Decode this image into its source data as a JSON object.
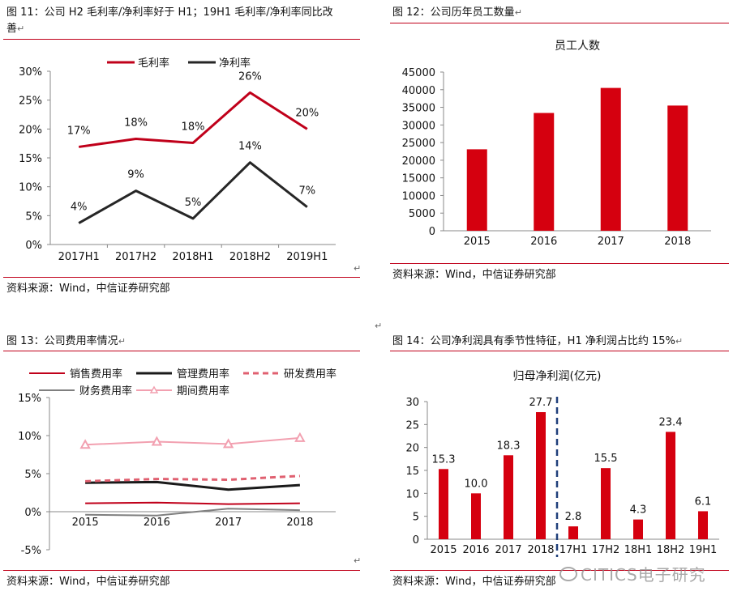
{
  "panel11": {
    "title_line1": "图 11：公司 H2 毛利率/净利率好于 H1；19H1 毛利率/净利率同比改",
    "title_line2": "善",
    "source": "资料来源：Wind，中信证券研究部",
    "chart_data": {
      "type": "line",
      "categories": [
        "2017H1",
        "2017H2",
        "2018H1",
        "2018H2",
        "2019H1"
      ],
      "ylim": [
        0,
        30
      ],
      "yticks": [
        "0%",
        "5%",
        "10%",
        "15%",
        "20%",
        "25%",
        "30%"
      ],
      "series": [
        {
          "name": "毛利率",
          "color": "#c0001a",
          "values": [
            16.9,
            18.3,
            17.6,
            26.3,
            20.0
          ],
          "labels": [
            "17%",
            "18%",
            "18%",
            "26%",
            "20%"
          ]
        },
        {
          "name": "净利率",
          "color": "#262626",
          "values": [
            3.7,
            9.3,
            4.5,
            14.2,
            6.5
          ],
          "labels": [
            "4%",
            "9%",
            "5%",
            "14%",
            "7%"
          ]
        }
      ]
    }
  },
  "panel12": {
    "title": "图 12：公司历年员工数量",
    "source": "资料来源：Wind，中信证券研究部",
    "chart_data": {
      "type": "bar",
      "title": "员工人数",
      "categories": [
        "2015",
        "2016",
        "2017",
        "2018"
      ],
      "values": [
        23100,
        33400,
        40500,
        35500
      ],
      "ylim": [
        0,
        45000
      ],
      "yticks": [
        "0",
        "5000",
        "10000",
        "15000",
        "20000",
        "25000",
        "30000",
        "35000",
        "40000",
        "45000"
      ],
      "color": "#d5000f"
    }
  },
  "panel13": {
    "title": "图 13：公司费用率情况",
    "source": "资料来源：Wind，中信证券研究部",
    "chart_data": {
      "type": "line",
      "categories": [
        "2015",
        "2016",
        "2017",
        "2018"
      ],
      "ylim": [
        -5,
        15
      ],
      "yticks": [
        "-5%",
        "0%",
        "5%",
        "10%",
        "15%"
      ],
      "series": [
        {
          "name": "销售费用率",
          "color": "#c0001a",
          "style": "solid",
          "values": [
            1.1,
            1.2,
            1.0,
            1.1
          ]
        },
        {
          "name": "管理费用率",
          "color": "#1a1a1a",
          "style": "thick",
          "values": [
            3.8,
            3.9,
            2.9,
            3.5
          ]
        },
        {
          "name": "研发费用率",
          "color": "#e06070",
          "style": "dashed",
          "values": [
            4.0,
            4.3,
            4.2,
            4.7
          ]
        },
        {
          "name": "财务费用率",
          "color": "#7f7f7f",
          "style": "solid",
          "values": [
            -0.4,
            -0.5,
            0.4,
            0.2
          ]
        },
        {
          "name": "期间费用率",
          "color": "#f2a0b0",
          "style": "triangle",
          "values": [
            8.8,
            9.2,
            8.9,
            9.7
          ]
        }
      ]
    }
  },
  "panel14": {
    "title": "图 14：公司净利润具有季节性特征，H1 净利润占比约 15%",
    "source": "资料来源：Wind，中信证券研究部",
    "watermark": "CITICS电子研究",
    "chart_data": {
      "type": "bar",
      "title": "归母净利润(亿元)",
      "categories": [
        "2015",
        "2016",
        "2017",
        "2018",
        "17H1",
        "17H2",
        "18H1",
        "18H2",
        "19H1"
      ],
      "values": [
        15.3,
        10.0,
        18.3,
        27.7,
        2.8,
        15.5,
        4.3,
        23.4,
        6.1
      ],
      "labels": [
        "15.3",
        "10.0",
        "18.3",
        "27.7",
        "2.8",
        "15.5",
        "4.3",
        "23.4",
        "6.1"
      ],
      "ylim": [
        0,
        30
      ],
      "yticks": [
        "0",
        "5",
        "10",
        "15",
        "20",
        "25",
        "30"
      ],
      "color": "#d5000f",
      "divider_color": "#1f3f7a"
    }
  },
  "para_mark": "↵"
}
